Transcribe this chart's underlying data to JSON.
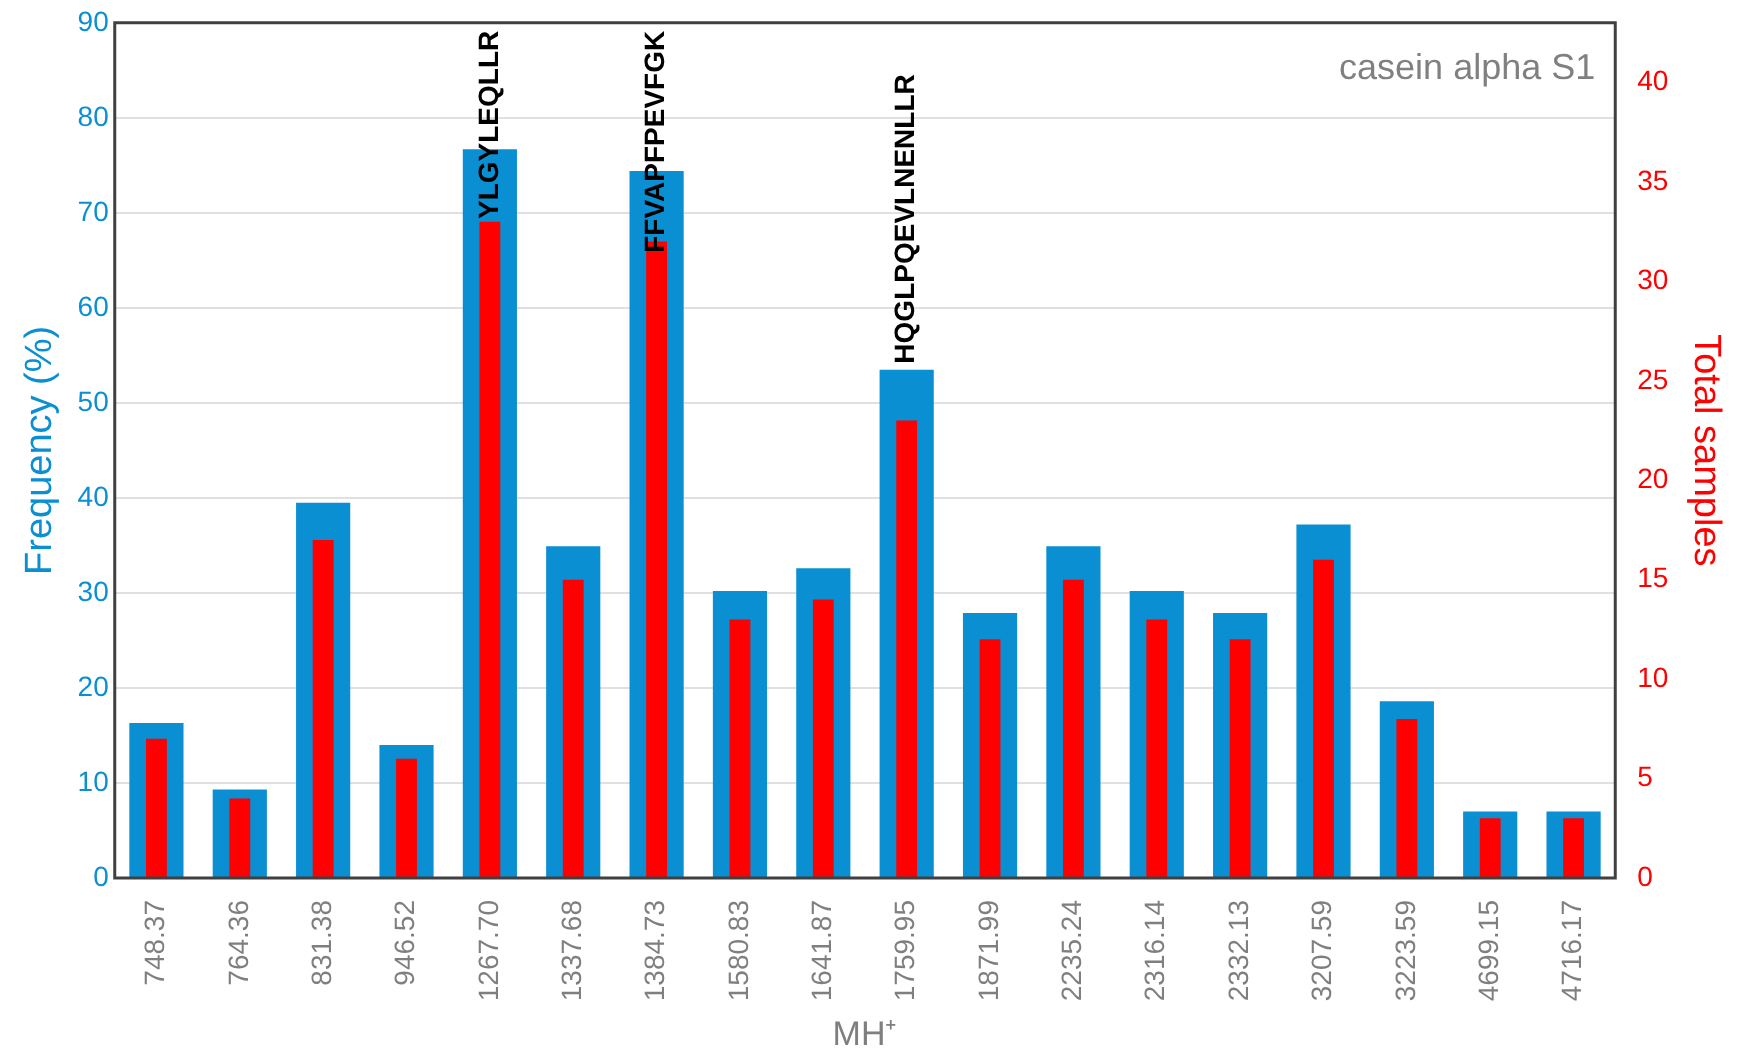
{
  "chart_data": {
    "type": "bar",
    "xlabel": "MH⁺",
    "ylabel": "Frequency (%)",
    "y2label": "Total samples",
    "categories": [
      "748.37",
      "764.36",
      "831.38",
      "946.52",
      "1267.70",
      "1337.68",
      "1384.73",
      "1580.83",
      "1641.87",
      "1759.95",
      "1871.99",
      "2235.24",
      "2316.14",
      "2332.13",
      "3207.59",
      "3223.59",
      "4699.15",
      "4716.17"
    ],
    "series": [
      {
        "name": null,
        "color": "#0b8fd3",
        "values": [
          16.3,
          9.3,
          39.5,
          14.0,
          76.7,
          34.9,
          74.4,
          30.2,
          32.6,
          53.5,
          27.9,
          34.9,
          30.2,
          27.9,
          37.2,
          18.6,
          7.0,
          7.0
        ]
      },
      {
        "name": null,
        "color": "#ff0000",
        "axis": "y2",
        "values": [
          7,
          4,
          17,
          6,
          33,
          15,
          32,
          13,
          14,
          23,
          12,
          15,
          13,
          12,
          16,
          8,
          3,
          3
        ]
      }
    ],
    "ylim": [
      0,
      90
    ],
    "yticks": [
      0,
      10,
      20,
      30,
      40,
      50,
      60,
      70,
      80,
      90
    ],
    "y2lim": [
      0,
      43
    ],
    "y2ticks": [
      0,
      5,
      10,
      15,
      20,
      25,
      30,
      35,
      40
    ],
    "grid": "y",
    "legend": false,
    "annotations": [
      {
        "text": "YLGYLEQLLR",
        "x": "1267.70",
        "y": 76.7
      },
      {
        "text": "FFVAPFPEVFGK",
        "x": "1384.73",
        "y": 74.4
      },
      {
        "text": "HQGLPQEVLNENLLR",
        "x": "1759.95",
        "y": 53.5
      },
      "casein alpha S1"
    ]
  }
}
